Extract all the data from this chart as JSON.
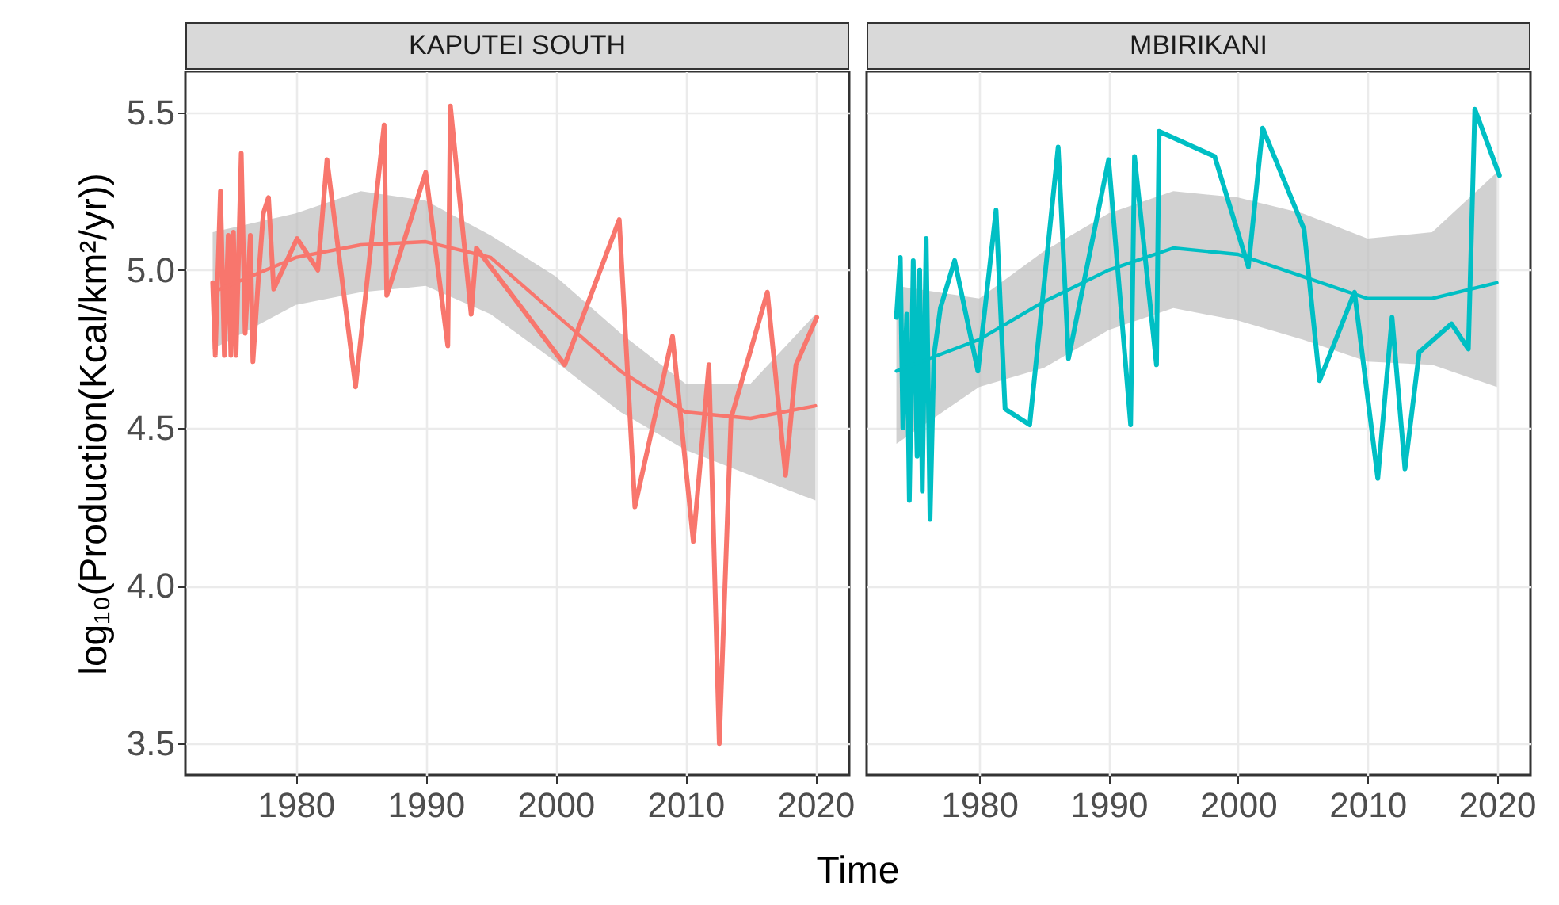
{
  "chart_data": [
    {
      "type": "line",
      "title": "KAPUTEI SOUTH",
      "xlabel": "Time",
      "ylabel": "log₁₀(Production(Kcal/km²/yr))",
      "xlim": [
        1971.5,
        2022.6
      ],
      "ylim": [
        3.4,
        5.63
      ],
      "xticks": [
        1980,
        1990,
        2000,
        2010,
        2020
      ],
      "yticks": [
        {
          "value": 3.5,
          "label": "3.5"
        },
        {
          "value": 4,
          "label": "4.0"
        },
        {
          "value": 4.5,
          "label": "4.5"
        },
        {
          "value": 5,
          "label": "5.0"
        },
        {
          "value": 5.5,
          "label": "5.5"
        }
      ],
      "grid": true,
      "series": [
        {
          "color": "#f8766d",
          "x": [
            1973.6,
            1973.8,
            1974.2,
            1974.5,
            1974.8,
            1975.0,
            1975.2,
            1975.4,
            1975.8,
            1976.1,
            1976.5,
            1976.7,
            1977.1,
            1977.5,
            1977.9,
            1978.3,
            1980.1,
            1981.7,
            1982.4,
            1984.6,
            1986.8,
            1987.0,
            1990.0,
            1991.7,
            1991.9,
            1993.5,
            1993.9,
            2000.7,
            2004.9,
            2006.1,
            2009.0,
            2010.6,
            2011.8,
            2012.6,
            2013.5,
            2016.3,
            2017.7,
            2018.5,
            2020.1
          ],
          "values": [
            4.96,
            4.73,
            5.25,
            4.73,
            5.11,
            4.73,
            5.12,
            4.73,
            5.37,
            4.8,
            5.11,
            4.71,
            4.96,
            5.18,
            5.23,
            4.94,
            5.1,
            5.0,
            5.35,
            4.63,
            5.46,
            4.92,
            5.31,
            4.76,
            5.52,
            4.86,
            5.07,
            4.7,
            5.16,
            4.25,
            4.79,
            4.14,
            4.7,
            3.5,
            4.53,
            4.93,
            4.35,
            4.7,
            4.85
          ]
        },
        {
          "color": "#f8766d",
          "x": [
            1973.6,
            1980,
            1985,
            1990,
            1995,
            2000,
            2005,
            2010,
            2015,
            2020
          ],
          "values": [
            4.93,
            5.04,
            5.08,
            5.09,
            5.04,
            4.86,
            4.68,
            4.55,
            4.53,
            4.57
          ],
          "lower": [
            4.75,
            4.89,
            4.93,
            4.95,
            4.86,
            4.71,
            4.55,
            4.43,
            4.35,
            4.27
          ],
          "upper": [
            5.12,
            5.18,
            5.25,
            5.22,
            5.11,
            4.98,
            4.8,
            4.64,
            4.64,
            4.86
          ]
        }
      ]
    },
    {
      "type": "line",
      "title": "MBIRIKANI",
      "xlim": [
        1971.3,
        2022.6
      ],
      "ylim": [
        3.4,
        5.63
      ],
      "xticks": [
        1980,
        1990,
        2000,
        2010,
        2020
      ],
      "yticks": [
        3.5,
        4,
        4.5,
        5,
        5.5
      ],
      "grid": true,
      "tick_labels": "x",
      "series": [
        {
          "color": "#00bfc4",
          "x": [
            1973.6,
            1973.9,
            1974.1,
            1974.4,
            1974.6,
            1974.9,
            1975.2,
            1975.4,
            1975.6,
            1975.9,
            1976.2,
            1976.5,
            1977.0,
            1978.1,
            1979.9,
            1981.3,
            1982.0,
            1983.9,
            1986.1,
            1986.9,
            1990.0,
            1991.7,
            1992.0,
            1993.7,
            1993.9,
            1998.2,
            2000.8,
            2001.9,
            2005.1,
            2006.3,
            2009.0,
            2010.8,
            2011.9,
            2012.9,
            2014.0,
            2016.5,
            2017.8,
            2018.3,
            2020.2
          ],
          "values": [
            4.85,
            5.04,
            4.5,
            4.86,
            4.27,
            5.03,
            4.41,
            5.0,
            4.3,
            5.1,
            4.21,
            4.73,
            4.88,
            5.03,
            4.68,
            5.19,
            4.56,
            4.51,
            5.39,
            4.72,
            5.35,
            4.51,
            5.36,
            4.7,
            5.44,
            5.36,
            5.01,
            5.45,
            5.13,
            4.65,
            4.93,
            4.34,
            4.85,
            4.37,
            4.74,
            4.83,
            4.75,
            5.51,
            5.3
          ]
        },
        {
          "color": "#00bfc4",
          "x": [
            1973.6,
            1980,
            1985,
            1990,
            1995,
            2000,
            2005,
            2010,
            2015,
            2020
          ],
          "values": [
            4.68,
            4.78,
            4.9,
            5.0,
            5.07,
            5.05,
            4.98,
            4.91,
            4.91,
            4.96
          ],
          "lower": [
            4.45,
            4.63,
            4.69,
            4.81,
            4.88,
            4.84,
            4.78,
            4.71,
            4.7,
            4.63
          ],
          "upper": [
            4.95,
            4.91,
            5.06,
            5.18,
            5.25,
            5.23,
            5.18,
            5.1,
            5.12,
            5.31
          ]
        }
      ]
    }
  ]
}
